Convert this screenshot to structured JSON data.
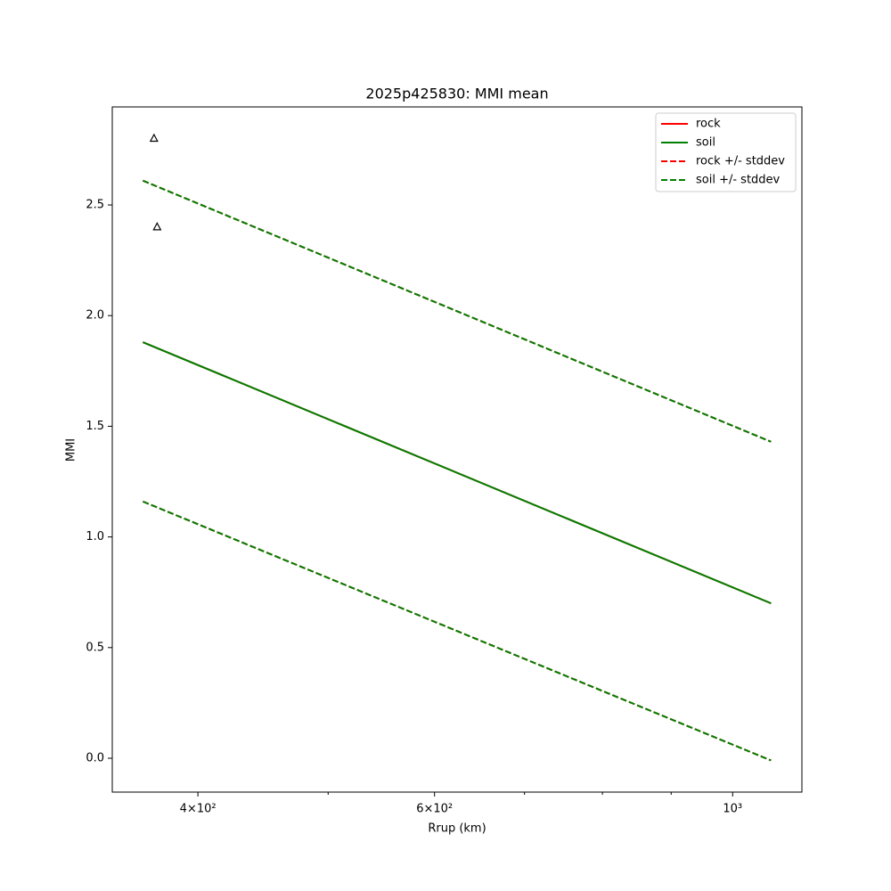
{
  "chart_data": {
    "type": "line",
    "title": "2025p425830: MMI mean",
    "xlabel": "Rrup (km)",
    "ylabel": "MMI",
    "xscale": "log",
    "x": [
      364,
      1068
    ],
    "series": [
      {
        "name": "rock",
        "color": "#ff0000",
        "style": "solid",
        "values": [
          1.88,
          0.7
        ]
      },
      {
        "name": "soil",
        "color": "#008000",
        "style": "solid",
        "values": [
          1.88,
          0.7
        ]
      },
      {
        "name": "rock +/- stddev",
        "color": "#ff0000",
        "style": "dashed",
        "upper": [
          2.61,
          1.43
        ],
        "lower": [
          1.16,
          -0.01
        ]
      },
      {
        "name": "soil +/- stddev",
        "color": "#008000",
        "style": "dashed",
        "upper": [
          2.61,
          1.43
        ],
        "lower": [
          1.16,
          -0.01
        ]
      }
    ],
    "points": {
      "x": [
        371,
        373
      ],
      "values": [
        2.8,
        2.4
      ],
      "color": "#000000"
    },
    "xlim": [
      345.4,
      1126
    ],
    "ylim": [
      -0.153,
      2.943
    ],
    "xticks": [
      {
        "value": 400,
        "label": "4×10²"
      },
      {
        "value": 600,
        "label": "6×10²"
      },
      {
        "value": 1000,
        "label": "10³"
      }
    ],
    "xminorticks": [
      500,
      700,
      800,
      900
    ],
    "yticks": [
      {
        "value": 0,
        "label": "0.0"
      },
      0.5,
      {
        "value": 1,
        "label": "1.0"
      },
      1.5,
      {
        "value": 2,
        "label": "2.0"
      },
      2.5
    ],
    "legend": "upper right"
  }
}
